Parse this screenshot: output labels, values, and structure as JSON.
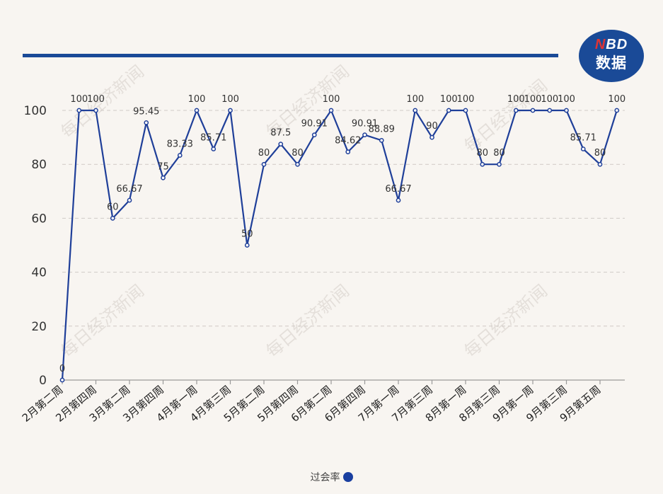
{
  "brand": {
    "logo_top_n": "N",
    "logo_top_rest": "BD",
    "logo_bottom": "数据",
    "watermark": "每日经济新闻"
  },
  "legend": {
    "label": "过会率",
    "color": "#1a3fa0"
  },
  "colors": {
    "accent": "#1a4a97",
    "line": "#1f3f99",
    "background": "#f8f5f1"
  },
  "chart_data": {
    "type": "line",
    "title": "",
    "xlabel": "",
    "ylabel": "",
    "ylim": [
      0,
      100
    ],
    "yticks": [
      0,
      20,
      40,
      60,
      80,
      100
    ],
    "grid": true,
    "legend_position": "bottom-center",
    "x_tick_labels_shown": [
      "2月第二周",
      "2月第四周",
      "3月第二周",
      "3月第四周",
      "4月第一周",
      "4月第三周",
      "5月第二周",
      "5月第四周",
      "6月第二周",
      "6月第四周",
      "7月第一周",
      "7月第三周",
      "8月第一周",
      "8月第三周",
      "9月第一周",
      "9月第三周",
      "9月第五周"
    ],
    "x_tick_indices": [
      0,
      2,
      4,
      6,
      8,
      10,
      12,
      14,
      16,
      18,
      20,
      22,
      24,
      26,
      28,
      30,
      32
    ],
    "series": [
      {
        "name": "过会率",
        "values": [
          0,
          100,
          100,
          60,
          66.67,
          95.45,
          75,
          83.33,
          100,
          85.71,
          100,
          50,
          80,
          87.5,
          80,
          90.91,
          100,
          84.62,
          90.91,
          88.89,
          66.67,
          100,
          90,
          100,
          100,
          80,
          80,
          100,
          100,
          100,
          100,
          85.71,
          80,
          100
        ],
        "labels": [
          "0",
          "100",
          "100",
          "60",
          "66.67",
          "95.45",
          "75",
          "83.33",
          "100",
          "85.71",
          "100",
          "50",
          "80",
          "87.5",
          "80",
          "90.91",
          "100",
          "84.62",
          "90.91",
          "88.89",
          "66.67",
          "100",
          "90",
          "100",
          "100",
          "80",
          "80",
          "100",
          "100",
          "100",
          "100",
          "85.71",
          "80",
          "100"
        ]
      }
    ]
  }
}
